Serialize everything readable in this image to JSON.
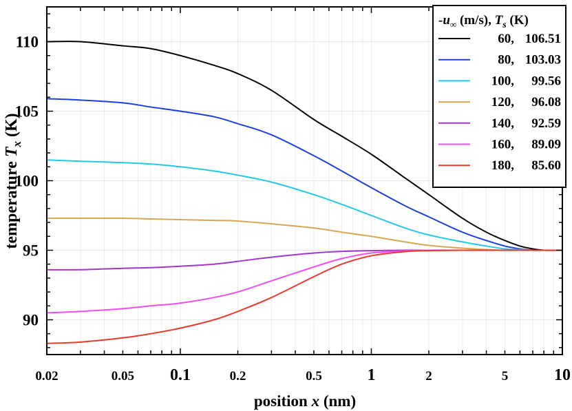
{
  "chart_data": {
    "type": "line",
    "xscale": "log",
    "xlim": [
      0.02,
      10
    ],
    "ylim": [
      87.5,
      112.5
    ],
    "xlabel_prefix": "position ",
    "xlabel_var": "x",
    "xlabel_suffix": " (nm)",
    "ylabel_prefix": "temperature ",
    "ylabel_var": "T",
    "ylabel_sub": "x",
    "ylabel_suffix": " (K)",
    "x_ticks": [
      {
        "value": 0.02,
        "label": "0.02",
        "major": false
      },
      {
        "value": 0.05,
        "label": "0.05",
        "major": false
      },
      {
        "value": 0.1,
        "label": "0.1",
        "major": true
      },
      {
        "value": 0.2,
        "label": "0.2",
        "major": false
      },
      {
        "value": 0.5,
        "label": "0.5",
        "major": false
      },
      {
        "value": 1,
        "label": "1",
        "major": true
      },
      {
        "value": 2,
        "label": "2",
        "major": false
      },
      {
        "value": 5,
        "label": "5",
        "major": false
      },
      {
        "value": 10,
        "label": "10",
        "major": true
      }
    ],
    "y_ticks": [
      {
        "value": 90,
        "label": "90"
      },
      {
        "value": 95,
        "label": "95"
      },
      {
        "value": 100,
        "label": "100"
      },
      {
        "value": 105,
        "label": "105"
      },
      {
        "value": 110,
        "label": "110"
      }
    ],
    "legend": {
      "title_prefix": "-u",
      "title_sub": "∞",
      "title_middle": " (m/s), ",
      "title_var": "T",
      "title_var_sub": "s",
      "title_suffix": " (K)",
      "position": "top-right"
    },
    "series": [
      {
        "name": "60, 106.51",
        "u": "60,",
        "ts": "106.51",
        "color": "#000000",
        "x": [
          0.02,
          0.03,
          0.05,
          0.07,
          0.1,
          0.15,
          0.2,
          0.3,
          0.5,
          0.7,
          1,
          1.5,
          2,
          3,
          4,
          5,
          6,
          7,
          8,
          10
        ],
        "y": [
          110.0,
          110.0,
          109.7,
          109.5,
          109.0,
          108.3,
          107.7,
          106.5,
          104.4,
          103.2,
          101.9,
          100.2,
          99.0,
          97.3,
          96.3,
          95.7,
          95.3,
          95.1,
          95.0,
          95.0
        ]
      },
      {
        "name": "80, 103.03",
        "u": "80,",
        "ts": "103.03",
        "color": "#1a3fe0",
        "x": [
          0.02,
          0.03,
          0.05,
          0.07,
          0.1,
          0.15,
          0.2,
          0.3,
          0.5,
          0.7,
          1,
          1.5,
          2,
          3,
          4,
          5,
          6,
          7,
          8,
          10
        ],
        "y": [
          105.9,
          105.8,
          105.6,
          105.3,
          105.0,
          104.6,
          104.1,
          103.3,
          101.8,
          100.7,
          99.5,
          98.2,
          97.4,
          96.3,
          95.7,
          95.3,
          95.1,
          95.0,
          95.0,
          95.0
        ]
      },
      {
        "name": "100, 99.56",
        "u": "100,",
        "ts": "99.56",
        "color": "#22c8e8",
        "x": [
          0.02,
          0.03,
          0.05,
          0.07,
          0.1,
          0.15,
          0.2,
          0.3,
          0.5,
          0.7,
          1,
          1.5,
          2,
          3,
          4,
          5,
          6,
          7,
          8,
          10
        ],
        "y": [
          101.5,
          101.4,
          101.3,
          101.2,
          101.0,
          100.7,
          100.4,
          99.9,
          99.0,
          98.3,
          97.5,
          96.6,
          96.1,
          95.6,
          95.3,
          95.1,
          95.05,
          95.0,
          95.0,
          95.0
        ]
      },
      {
        "name": "120, 96.08",
        "u": "120,",
        "ts": "96.08",
        "color": "#d9a552",
        "x": [
          0.02,
          0.03,
          0.05,
          0.07,
          0.1,
          0.15,
          0.2,
          0.3,
          0.5,
          0.7,
          1,
          1.5,
          2,
          3,
          4,
          5,
          6,
          7,
          8,
          10
        ],
        "y": [
          97.3,
          97.3,
          97.3,
          97.25,
          97.2,
          97.15,
          97.1,
          96.9,
          96.6,
          96.3,
          96.0,
          95.6,
          95.35,
          95.15,
          95.05,
          95.0,
          95.0,
          95.0,
          95.0,
          95.0
        ]
      },
      {
        "name": "140, 92.59",
        "u": "140,",
        "ts": "92.59",
        "color": "#a335c8",
        "x": [
          0.02,
          0.03,
          0.05,
          0.07,
          0.1,
          0.15,
          0.2,
          0.3,
          0.5,
          0.7,
          1,
          1.5,
          2,
          3,
          4,
          5,
          6,
          7,
          8,
          10
        ],
        "y": [
          93.6,
          93.6,
          93.7,
          93.75,
          93.85,
          94.0,
          94.2,
          94.5,
          94.8,
          94.92,
          94.97,
          95.0,
          95.0,
          95.0,
          95.0,
          95.0,
          95.0,
          95.0,
          95.0,
          95.0
        ]
      },
      {
        "name": "160, 89.09",
        "u": "160,",
        "ts": "89.09",
        "color": "#f04cf0",
        "x": [
          0.02,
          0.03,
          0.05,
          0.07,
          0.1,
          0.15,
          0.2,
          0.3,
          0.5,
          0.7,
          1,
          1.5,
          2,
          3,
          4,
          5,
          6,
          7,
          8,
          10
        ],
        "y": [
          90.5,
          90.6,
          90.8,
          91.0,
          91.2,
          91.6,
          92.0,
          92.8,
          93.8,
          94.4,
          94.8,
          94.95,
          95.0,
          95.0,
          95.0,
          95.0,
          95.0,
          95.0,
          95.0,
          95.0
        ]
      },
      {
        "name": "180, 85.60",
        "u": "180,",
        "ts": "85.60",
        "color": "#e83a28",
        "x": [
          0.02,
          0.03,
          0.05,
          0.07,
          0.1,
          0.15,
          0.2,
          0.3,
          0.5,
          0.7,
          1,
          1.5,
          2,
          3,
          4,
          5,
          6,
          7,
          8,
          10
        ],
        "y": [
          88.3,
          88.4,
          88.7,
          89.0,
          89.4,
          90.0,
          90.6,
          91.6,
          93.1,
          94.0,
          94.6,
          94.9,
          94.97,
          95.0,
          95.0,
          95.0,
          95.0,
          95.0,
          95.0,
          95.0
        ]
      }
    ]
  }
}
